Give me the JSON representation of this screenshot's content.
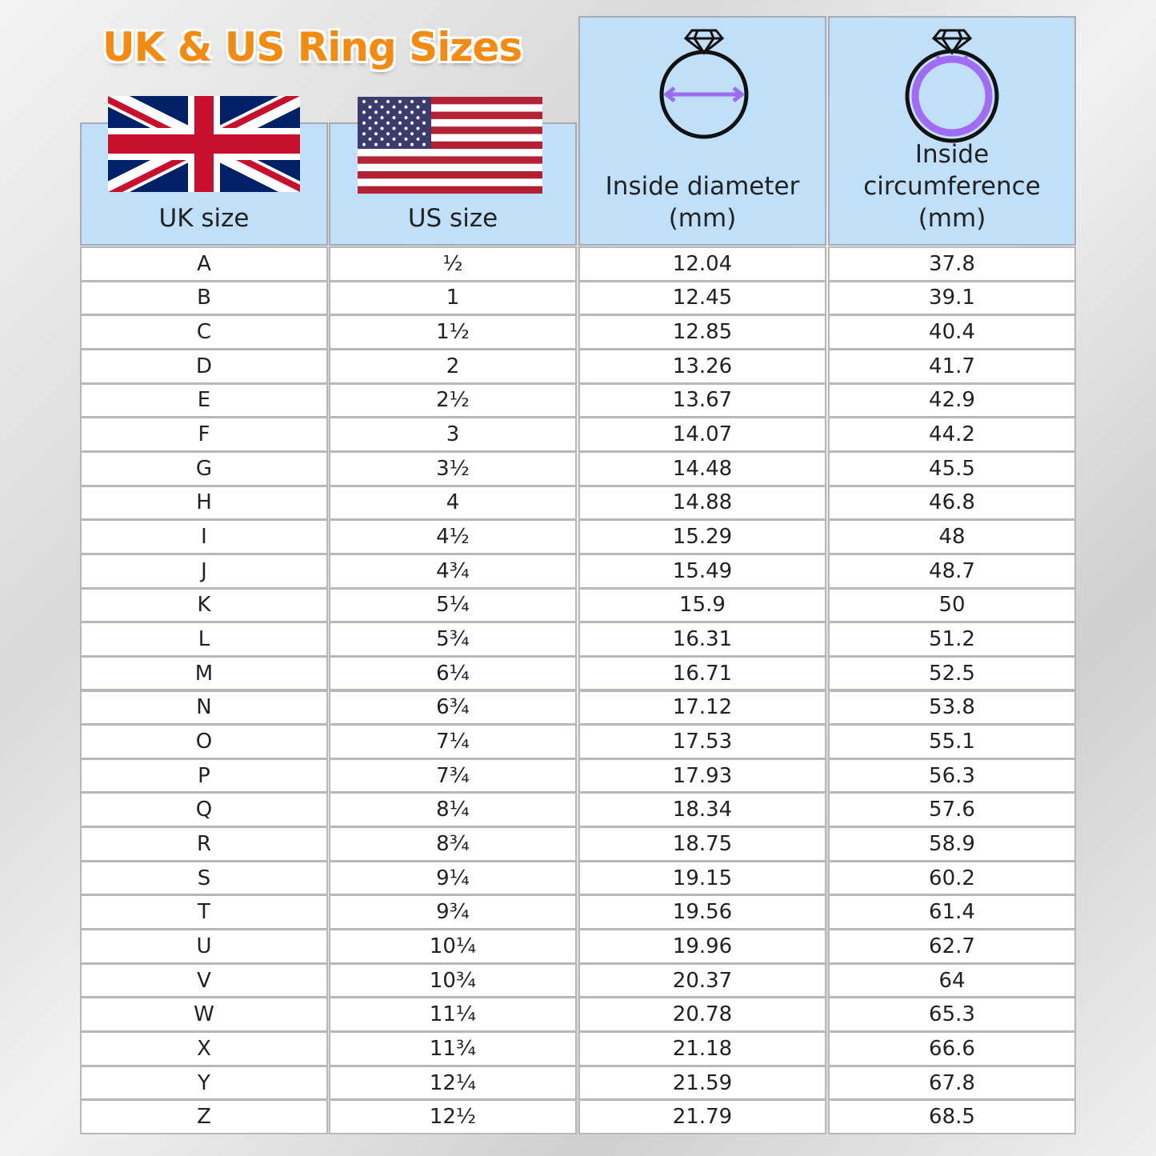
{
  "title": "UK & US Ring Sizes",
  "table": {
    "headers": [
      [
        "UK size"
      ],
      [
        "US size"
      ],
      [
        "Inside diameter",
        "(mm)"
      ],
      [
        "Inside",
        "circumference",
        "(mm)"
      ]
    ],
    "rows": [
      [
        "A",
        "½",
        "12.04",
        "37.8"
      ],
      [
        "B",
        "1",
        "12.45",
        "39.1"
      ],
      [
        "C",
        "1½",
        "12.85",
        "40.4"
      ],
      [
        "D",
        "2",
        "13.26",
        "41.7"
      ],
      [
        "E",
        "2½",
        "13.67",
        "42.9"
      ],
      [
        "F",
        "3",
        "14.07",
        "44.2"
      ],
      [
        "G",
        "3½",
        "14.48",
        "45.5"
      ],
      [
        "H",
        "4",
        "14.88",
        "46.8"
      ],
      [
        "I",
        "4½",
        "15.29",
        "48"
      ],
      [
        "J",
        "4¾",
        "15.49",
        "48.7"
      ],
      [
        "K",
        "5¼",
        "15.9",
        "50"
      ],
      [
        "L",
        "5¾",
        "16.31",
        "51.2"
      ],
      [
        "M",
        "6¼",
        "16.71",
        "52.5"
      ],
      [
        "N",
        "6¾",
        "17.12",
        "53.8"
      ],
      [
        "O",
        "7¼",
        "17.53",
        "55.1"
      ],
      [
        "P",
        "7¾",
        "17.93",
        "56.3"
      ],
      [
        "Q",
        "8¼",
        "18.34",
        "57.6"
      ],
      [
        "R",
        "8¾",
        "18.75",
        "58.9"
      ],
      [
        "S",
        "9¼",
        "19.15",
        "60.2"
      ],
      [
        "T",
        "9¾",
        "19.56",
        "61.4"
      ],
      [
        "U",
        "10¼",
        "19.96",
        "62.7"
      ],
      [
        "V",
        "10¾",
        "20.37",
        "64"
      ],
      [
        "W",
        "11¼",
        "20.78",
        "65.3"
      ],
      [
        "X",
        "11¾",
        "21.18",
        "66.6"
      ],
      [
        "Y",
        "12¼",
        "21.59",
        "67.8"
      ],
      [
        "Z",
        "12½",
        "21.79",
        "68.5"
      ]
    ]
  }
}
